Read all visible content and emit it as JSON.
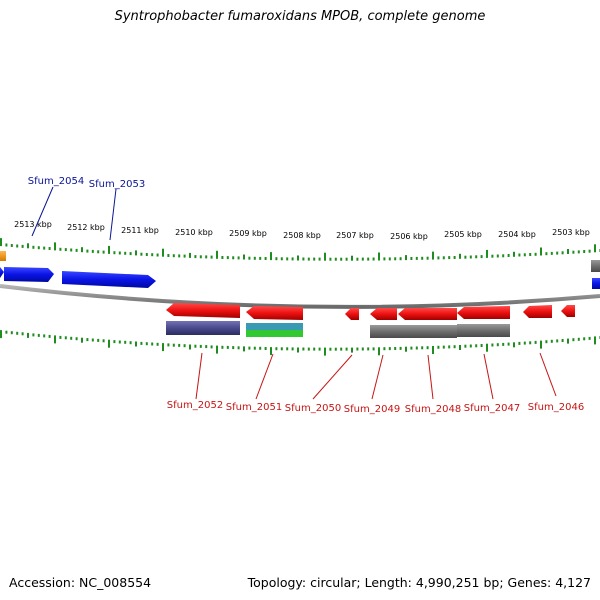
{
  "title": "Syntrophobacter fumaroxidans MPOB, complete genome",
  "footer": {
    "accession": "Accession: NC_008554",
    "summary": "Topology: circular; Length: 4,990,251 bp; Genes: 4,127"
  },
  "colors": {
    "tick": "#1e8c1e",
    "backbone": "#8c8c8c",
    "forward_gene": "#0a14e6",
    "reverse_gene": "#ee1111",
    "forward_label": "#0a1496",
    "reverse_label": "#c81414",
    "orange_feature": "#f59a1e",
    "gray_feature": "#6e6e6e",
    "purple_feature": "#4a4a8c",
    "teal_feature": "#3a9ab4",
    "green_feature": "#32c832"
  },
  "scale_labels": [
    "2513 kbp",
    "2512 kbp",
    "2511 kbp",
    "2510 kbp",
    "2509 kbp",
    "2508 kbp",
    "2507 kbp",
    "2506 kbp",
    "2505 kbp",
    "2504 kbp",
    "2503 kbp"
  ],
  "forward_genes": [
    {
      "name": "Sfum_2054"
    },
    {
      "name": "Sfum_2053"
    }
  ],
  "reverse_genes": [
    {
      "name": "Sfum_2052"
    },
    {
      "name": "Sfum_2051"
    },
    {
      "name": "Sfum_2050"
    },
    {
      "name": "Sfum_2049"
    },
    {
      "name": "Sfum_2048"
    },
    {
      "name": "Sfum_2047"
    },
    {
      "name": "Sfum_2046"
    }
  ]
}
